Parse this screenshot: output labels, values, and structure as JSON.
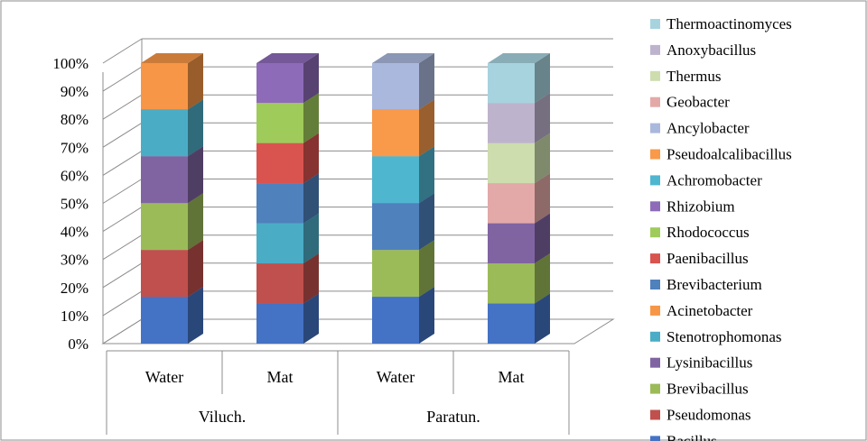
{
  "chart_data": {
    "type": "bar",
    "stacked": true,
    "percent": true,
    "three_d": true,
    "ylim": [
      0,
      100
    ],
    "yticks": [
      "0%",
      "10%",
      "20%",
      "30%",
      "40%",
      "50%",
      "60%",
      "70%",
      "80%",
      "90%",
      "100%"
    ],
    "groups": [
      {
        "label": "Viluch.",
        "categories": [
          "Water",
          "Mat"
        ]
      },
      {
        "label": "Paratun.",
        "categories": [
          "Water",
          "Mat"
        ]
      }
    ],
    "categories": [
      "Water",
      "Mat",
      "Water",
      "Mat"
    ],
    "series": [
      {
        "name": "Bacillus",
        "color": "#4472C4",
        "values": [
          16.7,
          14.3,
          16.7,
          14.3
        ]
      },
      {
        "name": "Pseudomonas",
        "color": "#C0504D",
        "values": [
          16.7,
          14.3,
          0,
          0
        ]
      },
      {
        "name": "Brevibacillus",
        "color": "#9BBB59",
        "values": [
          16.7,
          0,
          16.7,
          14.3
        ]
      },
      {
        "name": "Lysinibacillus",
        "color": "#8064A2",
        "values": [
          16.7,
          0,
          0,
          14.3
        ]
      },
      {
        "name": "Stenotrophomonas",
        "color": "#4BACC6",
        "values": [
          16.7,
          14.3,
          0,
          0
        ]
      },
      {
        "name": "Acinetobacter",
        "color": "#F79646",
        "values": [
          16.5,
          0,
          0,
          0
        ]
      },
      {
        "name": "Brevibacterium",
        "color": "#4F81BD",
        "values": [
          0,
          14.3,
          16.7,
          0
        ]
      },
      {
        "name": "Paenibacillus",
        "color": "#D9534F",
        "values": [
          0,
          14.3,
          0,
          0
        ]
      },
      {
        "name": "Rhodococcus",
        "color": "#9FCB5A",
        "values": [
          0,
          14.3,
          0,
          0
        ]
      },
      {
        "name": "Rhizobium",
        "color": "#8E6BB8",
        "values": [
          0,
          14.2,
          0,
          0
        ]
      },
      {
        "name": "Achromobacter",
        "color": "#4FB6D0",
        "values": [
          0,
          0,
          16.7,
          0
        ]
      },
      {
        "name": "Pseudoalcalibacillus",
        "color": "#F9994A",
        "values": [
          0,
          0,
          16.7,
          0
        ]
      },
      {
        "name": "Ancylobacter",
        "color": "#A9B8DC",
        "values": [
          0,
          0,
          16.5,
          0
        ]
      },
      {
        "name": "Geobacter",
        "color": "#E3A9A8",
        "values": [
          0,
          0,
          0,
          14.3
        ]
      },
      {
        "name": "Thermus",
        "color": "#CDDDAE",
        "values": [
          0,
          0,
          0,
          14.3
        ]
      },
      {
        "name": "Anoxybacillus",
        "color": "#BEB3CD",
        "values": [
          0,
          0,
          0,
          14.3
        ]
      },
      {
        "name": "Thermoactinomyces",
        "color": "#A7D3DF",
        "values": [
          0,
          0,
          0,
          14.2
        ]
      }
    ],
    "legend_position": "right",
    "grid": true
  }
}
